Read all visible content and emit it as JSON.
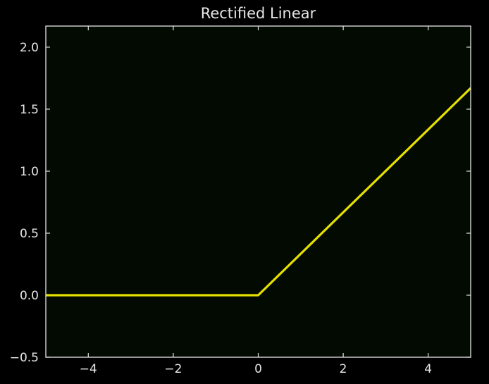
{
  "chart_data": {
    "type": "line",
    "title": "Rectified Linear",
    "xlabel": "",
    "ylabel": "",
    "xlim": [
      -5,
      5
    ],
    "ylim": [
      -0.5,
      2.17
    ],
    "grid": false,
    "x_ticks": [
      -4,
      -2,
      0,
      2,
      4
    ],
    "x_tick_labels": [
      "−4",
      "−2",
      "0",
      "2",
      "4"
    ],
    "y_ticks": [
      -0.5,
      0.0,
      0.5,
      1.0,
      1.5,
      2.0
    ],
    "y_tick_labels": [
      "−0.5",
      "0.0",
      "0.5",
      "1.0",
      "1.5",
      "2.0"
    ],
    "series": [
      {
        "x": [
          -5,
          0,
          5
        ],
        "y": [
          0,
          0,
          1.67
        ],
        "color": "#e6e000"
      }
    ],
    "colors": {
      "background": "#000000",
      "plot_area": "#020a02",
      "axes": "#e6e6e6",
      "text": "#e6e6e6"
    }
  }
}
